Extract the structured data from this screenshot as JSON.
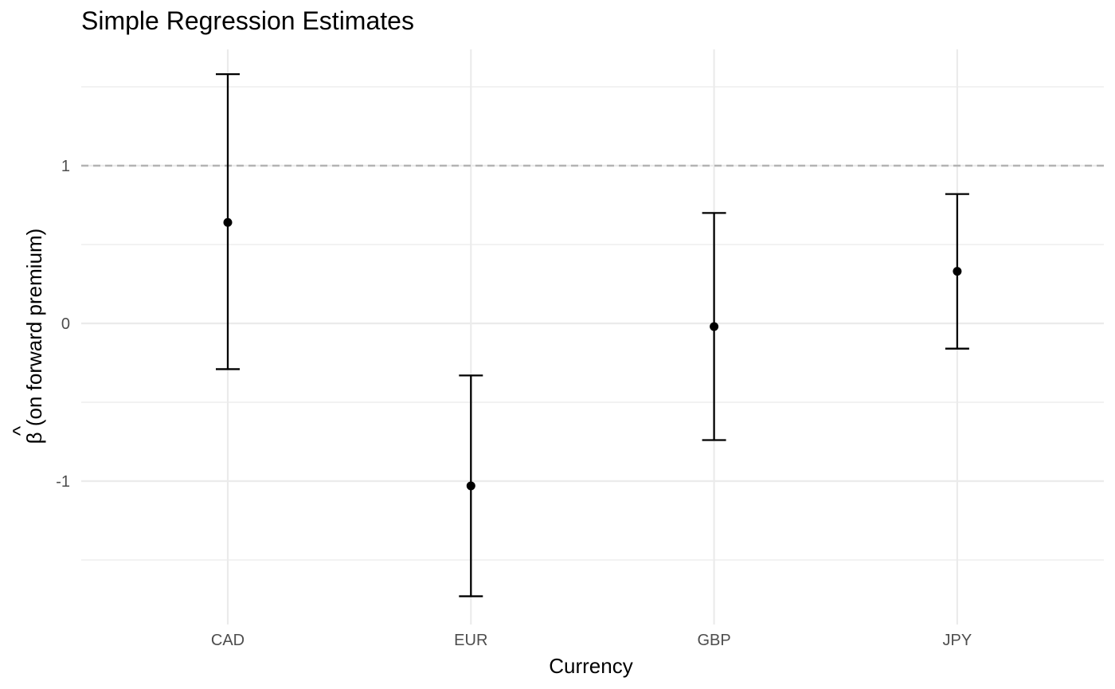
{
  "chart_data": {
    "type": "errorbar",
    "title": "Simple Regression Estimates",
    "xlabel": "Currency",
    "ylabel_hat": "^",
    "ylabel": "β (on forward premium)",
    "categories": [
      "CAD",
      "EUR",
      "GBP",
      "JPY"
    ],
    "estimates": [
      0.64,
      -1.03,
      -0.02,
      0.33
    ],
    "lower": [
      -0.29,
      -1.73,
      -0.74,
      -0.16
    ],
    "upper": [
      1.58,
      -0.33,
      0.7,
      0.82
    ],
    "reference_line": {
      "y": 1,
      "style": "dashed",
      "color": "#b3b3b3"
    },
    "ylim": [
      -1.9,
      1.75
    ],
    "y_ticks": [
      -1,
      0,
      1
    ],
    "y_tick_labels": [
      "-1",
      "0",
      "1"
    ],
    "y_minor_ticks": [
      -1.5,
      -0.5,
      0.5,
      1.5
    ],
    "grid": true,
    "legend": "none",
    "colors": {
      "marks": "#000000",
      "grid": "#ebebeb",
      "tick_text": "#4d4d4d"
    }
  }
}
